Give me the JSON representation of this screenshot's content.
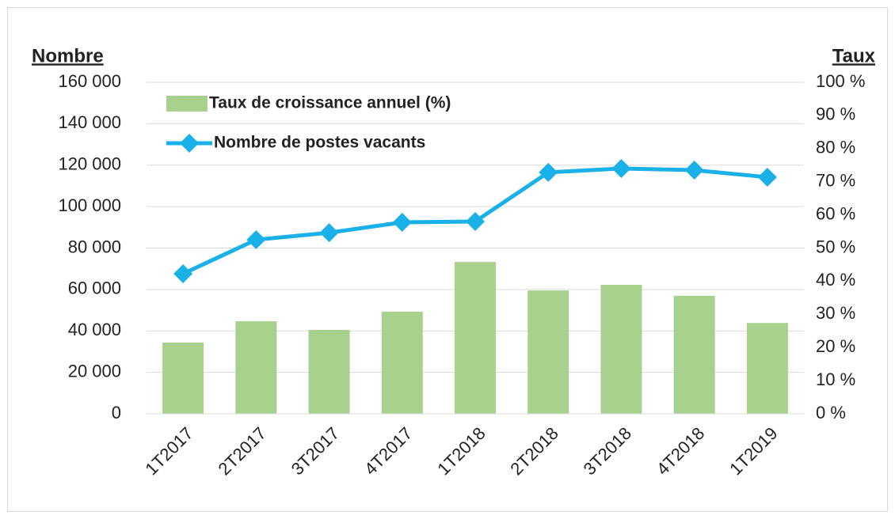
{
  "chart_data": {
    "type": "bar-line",
    "y_label": "Nombre",
    "y2_label": "Taux",
    "categories": [
      "1T2017",
      "2T2017",
      "3T2017",
      "4T2017",
      "1T2018",
      "2T2018",
      "3T2018",
      "4T2018",
      "1T2019"
    ],
    "series": [
      {
        "name": "Taux de croissance annuel (%)",
        "type": "bar",
        "axis": "y2",
        "color": "#a9d18e",
        "values": [
          21.5,
          27.9,
          25.3,
          30.8,
          45.8,
          37.2,
          38.9,
          35.6,
          27.4
        ]
      },
      {
        "name": "Nombre de postes vacants",
        "type": "line",
        "color": "#1ab0e8",
        "values": [
          67600,
          84000,
          87400,
          92400,
          92800,
          116500,
          118400,
          117600,
          114200
        ]
      }
    ],
    "ylim": [
      0,
      160000
    ],
    "yticks": [
      0,
      {
        "value": 20000,
        "label": "20 000"
      },
      {
        "value": 40000,
        "label": "40 000"
      },
      {
        "value": 60000,
        "label": "60 000"
      },
      {
        "value": 80000,
        "label": "80 000"
      },
      {
        "value": 100000,
        "label": "100 000"
      },
      {
        "value": 120000,
        "label": "120 000"
      },
      {
        "value": 140000,
        "label": "140 000"
      },
      {
        "value": 160000,
        "label": "160 000"
      }
    ],
    "y2lim": [
      0,
      100
    ],
    "y2ticks": [
      {
        "value": 0,
        "label": "0 %"
      },
      {
        "value": 10,
        "label": "10 %"
      },
      {
        "value": 20,
        "label": "20 %"
      },
      {
        "value": 30,
        "label": "30 %"
      },
      {
        "value": 40,
        "label": "40 %"
      },
      {
        "value": 50,
        "label": "50 %"
      },
      {
        "value": 60,
        "label": "60 %"
      },
      {
        "value": 70,
        "label": "70 %"
      },
      {
        "value": 80,
        "label": "80 %"
      },
      {
        "value": 90,
        "label": "90 %"
      },
      {
        "value": 100,
        "label": "100 %"
      }
    ],
    "grid": true,
    "legend": "top-left"
  }
}
